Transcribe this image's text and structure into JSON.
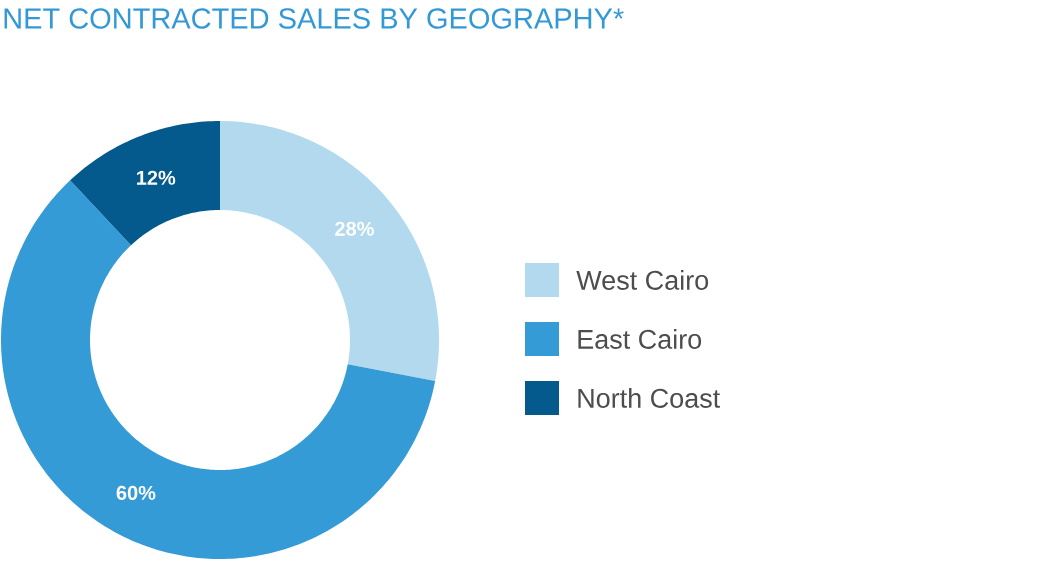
{
  "chart_data": {
    "type": "donut",
    "title": "NET CONTRACTED SALES BY GEOGRAPHY*",
    "categories": [
      "West Cairo",
      "East Cairo",
      "North Coast"
    ],
    "values": [
      28,
      60,
      12
    ],
    "value_labels": [
      "28%",
      "60%",
      "12%"
    ],
    "colors": [
      "#b3d9ee",
      "#359bd6",
      "#045a8d"
    ],
    "legend": "right"
  }
}
